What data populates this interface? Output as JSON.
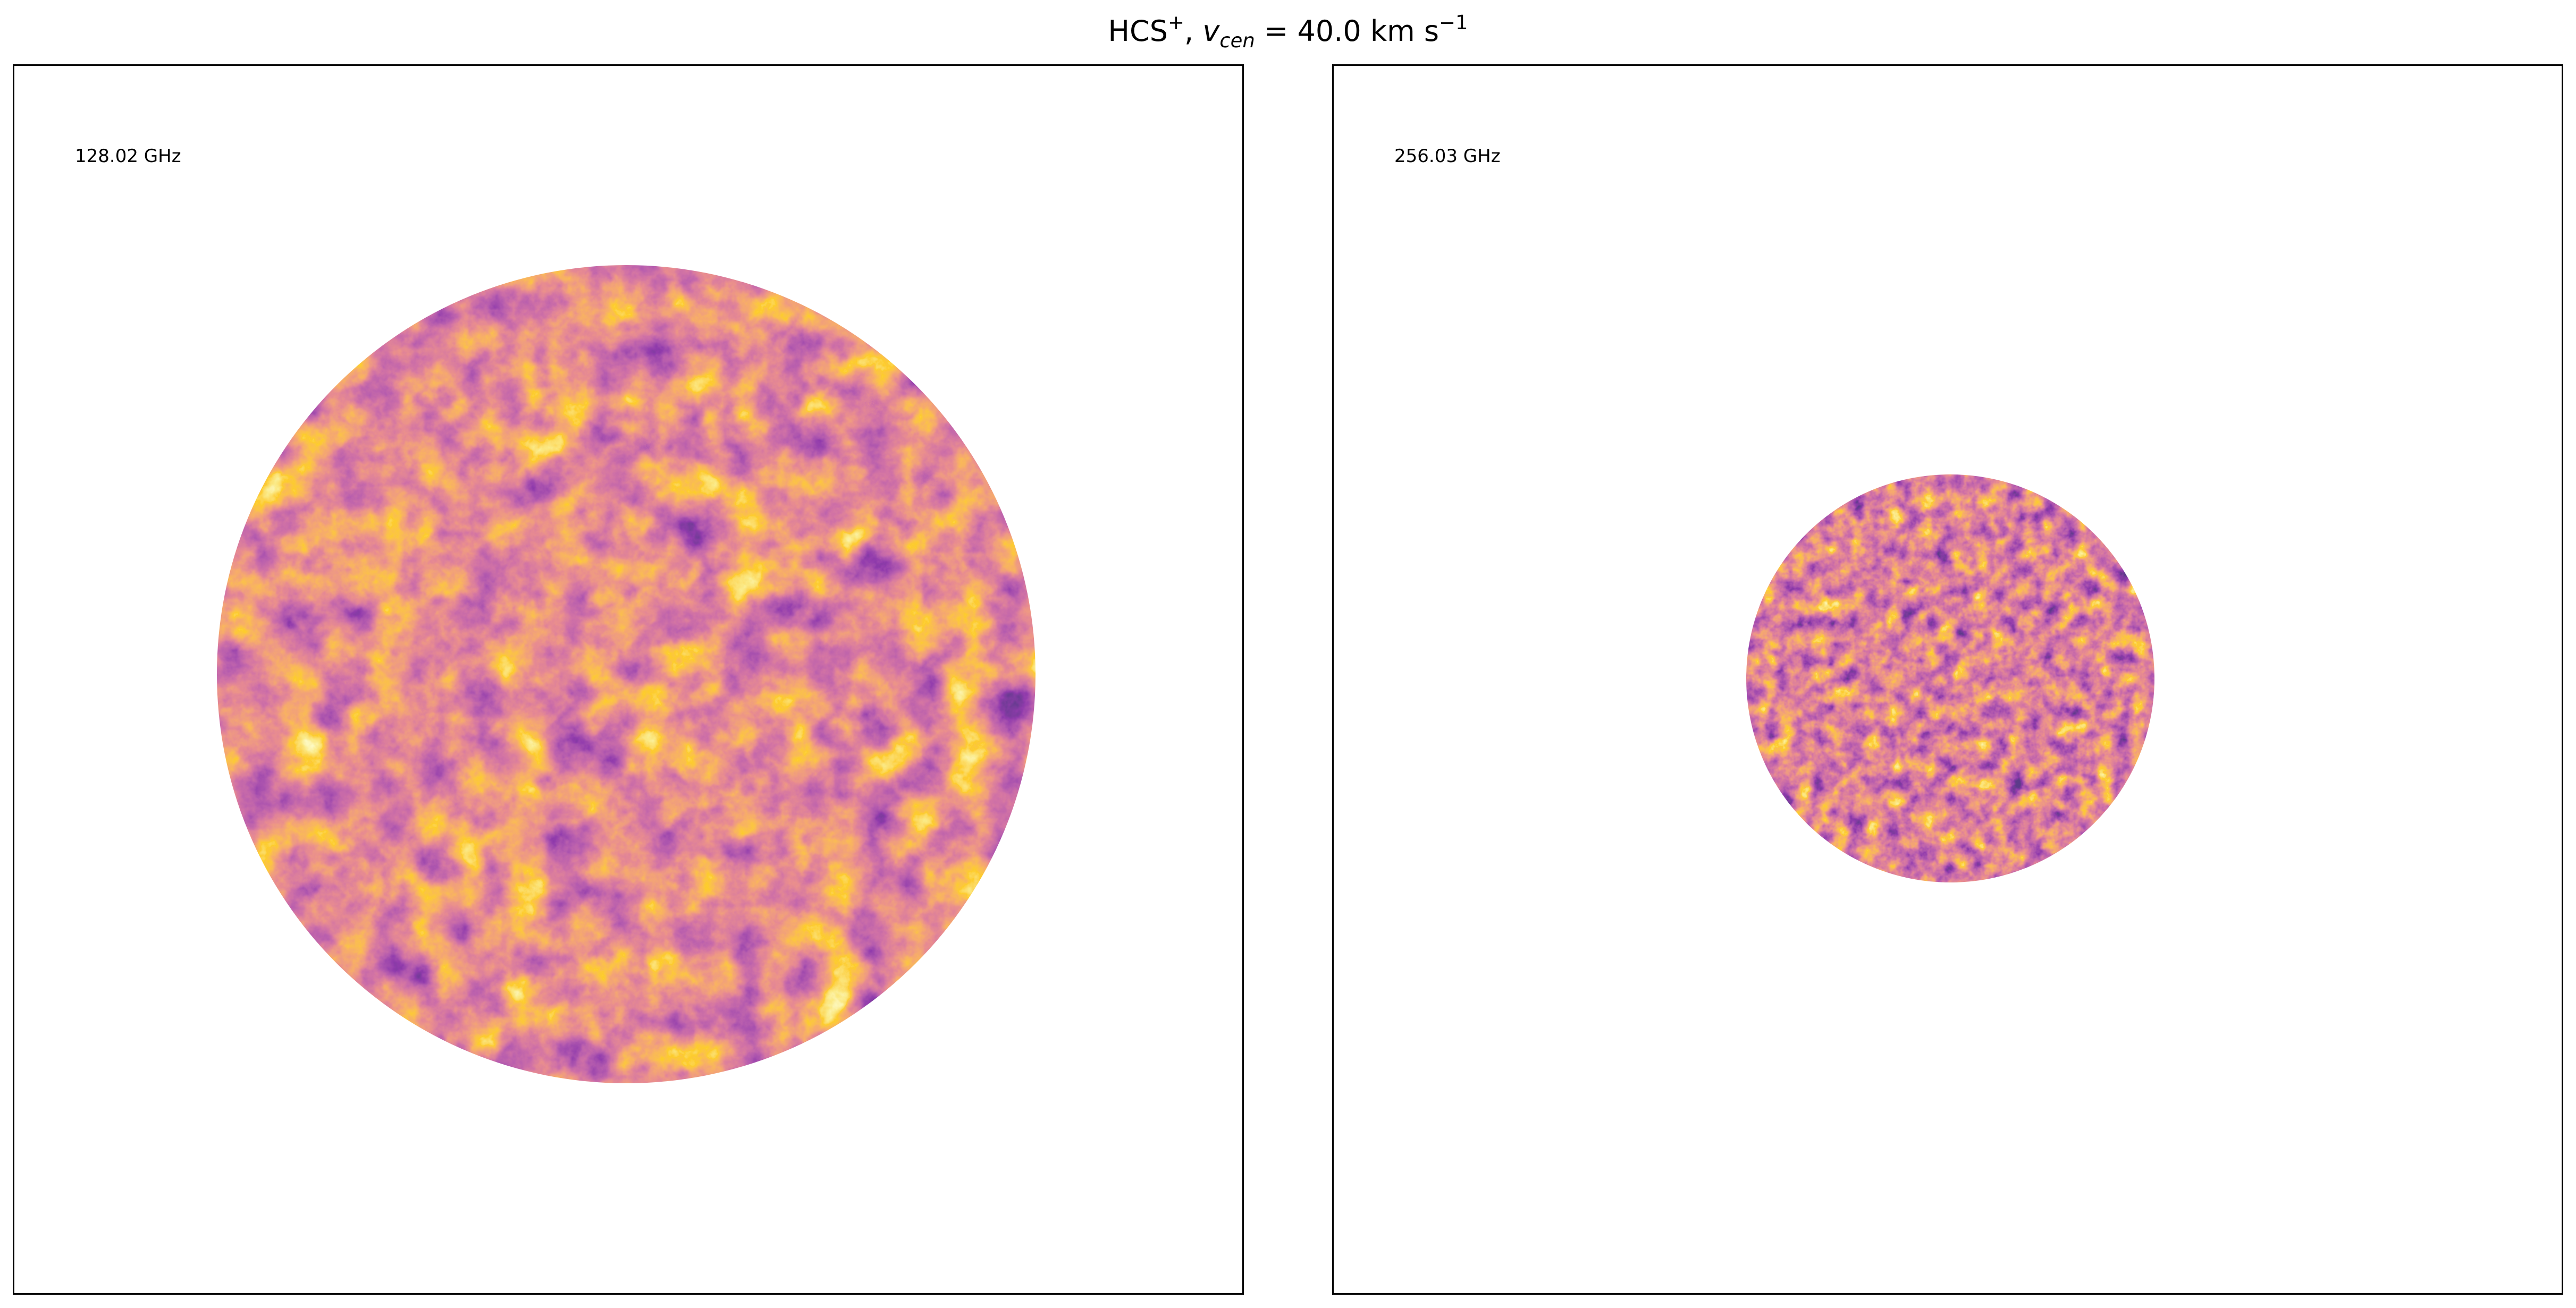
{
  "figure": {
    "title": {
      "species": "HCS",
      "species_charge": "+",
      "separator": ",",
      "var": "v",
      "var_sub": "cen",
      "equals": " = ",
      "value": " 40.0 km s",
      "unit_exp": "−1"
    }
  },
  "panels": [
    {
      "frequency_label": "128.02 GHz",
      "map_shape": "circle",
      "colormap": "inferno",
      "seed": 11
    },
    {
      "frequency_label": "256.03 GHz",
      "map_shape": "circle",
      "colormap": "inferno",
      "seed": 29
    }
  ],
  "colors": {
    "frame": "#000000",
    "background": "#ffffff",
    "colormap_stops": [
      "#1b0c41",
      "#4a0c6b",
      "#781c6d",
      "#a52c60",
      "#cf4446",
      "#ed6925",
      "#fb9b06",
      "#f7d13d",
      "#fcffa4"
    ]
  }
}
